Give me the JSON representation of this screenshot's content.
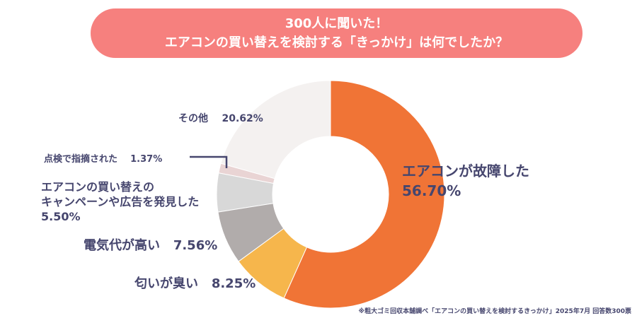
{
  "chart_data": {
    "type": "pie",
    "donut": true,
    "title": [
      "300人に聞いた！",
      "エアコンの買い替えを検討する「きっかけ」は何でしたか？"
    ],
    "slices": [
      {
        "label": "エアコンが故障した",
        "value": 56.7,
        "value_label": "56.70%",
        "color": "#f07436"
      },
      {
        "label": "匂いが臭い",
        "value": 8.25,
        "value_label": "8.25%",
        "color": "#f6b64c"
      },
      {
        "label": "電気代が高い",
        "value": 7.56,
        "value_label": "7.56%",
        "color": "#b1acab"
      },
      {
        "label": "エアコンの買い替えのキャンペーンや広告を発見した",
        "label_lines": [
          "エアコンの買い替えの",
          "キャンペーンや広告を発見した"
        ],
        "value": 5.5,
        "value_label": "5.50%",
        "color": "#d8d8d8"
      },
      {
        "label": "点検で指摘された",
        "value": 1.37,
        "value_label": "1.37%",
        "color": "#e9d4d4"
      },
      {
        "label": "その他",
        "value": 20.62,
        "value_label": "20.62%",
        "color": "#f4f1f0"
      }
    ],
    "note": "※粗大ゴミ回収本舗調べ「エアコンの買い替えを検討するきっかけ」2025年7月 回答数300票"
  }
}
